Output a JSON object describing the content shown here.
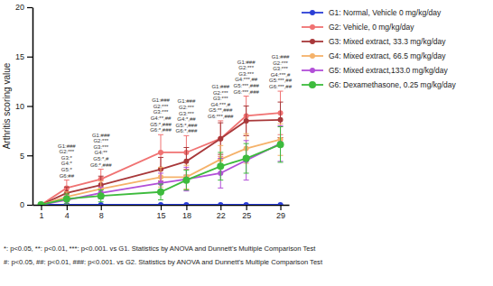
{
  "chart_data": {
    "type": "line",
    "y_label": "Arthritis scoring value",
    "x": [
      1,
      4,
      8,
      15,
      18,
      22,
      25,
      29
    ],
    "xlim": [
      0,
      30
    ],
    "xticks": [
      1,
      4,
      8,
      15,
      18,
      22,
      25,
      29
    ],
    "ylim": [
      0,
      20
    ],
    "yticks": [
      0,
      5,
      10,
      15,
      20
    ],
    "grid": false,
    "legend": "right",
    "marker": "circle",
    "series": [
      {
        "name": "G1: Normal, Vehicle 0 mg/kg/day",
        "color": "#2b3fd6",
        "values": [
          0,
          0,
          0,
          0,
          0,
          0,
          0,
          0
        ],
        "errors": [
          0,
          0,
          0,
          0,
          0,
          0,
          0,
          0
        ]
      },
      {
        "name": "G2: Vehicle, 0 mg/kg/day",
        "color": "#f07272",
        "values": [
          0,
          1.7,
          2.6,
          5.3,
          5.3,
          6.7,
          9.0,
          9.3
        ],
        "errors": [
          0,
          0.8,
          1.0,
          1.8,
          1.7,
          1.8,
          2.0,
          2.2
        ]
      },
      {
        "name": "G3: Mixed extract, 33.3 mg/kg/day",
        "color": "#a8383a",
        "values": [
          0,
          1.2,
          2.0,
          3.6,
          4.4,
          6.7,
          8.5,
          8.6
        ],
        "errors": [
          0,
          0.6,
          0.9,
          1.2,
          1.4,
          1.6,
          1.5,
          1.8
        ]
      },
      {
        "name": "G4: Mixed extract, 66.5 mg/kg/day",
        "color": "#f5b26a",
        "values": [
          0,
          0.8,
          1.6,
          2.8,
          2.8,
          4.6,
          5.7,
          6.6
        ],
        "errors": [
          0,
          0.5,
          0.8,
          1.0,
          1.2,
          1.4,
          1.5,
          1.6
        ]
      },
      {
        "name": "G5: Mixed extract,133.0 mg/kg/day",
        "color": "#b24fd8",
        "values": [
          0,
          0.5,
          1.2,
          2.2,
          2.6,
          3.2,
          4.5,
          6.2
        ],
        "errors": [
          0,
          0.4,
          0.6,
          1.0,
          1.2,
          1.5,
          2.0,
          1.8
        ]
      },
      {
        "name": "G6: Dexamethasone, 0.25 mg/kg/day",
        "color": "#3dbb3d",
        "values": [
          0,
          0.6,
          0.9,
          1.3,
          2.5,
          3.9,
          4.7,
          6.1
        ],
        "errors": [
          0,
          0.5,
          0.6,
          0.8,
          1.0,
          1.4,
          1.5,
          1.8
        ]
      }
    ],
    "annotations": [
      {
        "x": 4,
        "lines": [
          "G1:###",
          "G2:***",
          "G3:*",
          "G4:*",
          "G5:*",
          "G6:##"
        ]
      },
      {
        "x": 8,
        "lines": [
          "G1:###",
          "G2:***",
          "G3:***",
          "G4:**",
          "G5:*,#",
          "G6:*,###"
        ]
      },
      {
        "x": 15,
        "lines": [
          "G1:###",
          "G2:***",
          "G3:***",
          "G4:**,##",
          "G5:*,###",
          "G6:*,###"
        ]
      },
      {
        "x": 18,
        "lines": [
          "G1:###",
          "G2:***",
          "G3:***",
          "G4:*,##",
          "G5:*,###",
          "G6:*,###"
        ]
      },
      {
        "x": 22,
        "lines": [
          "G1:###",
          "G2:***",
          "G3:***",
          "G4:***,#",
          "G5:**,###",
          "G6:***,###"
        ]
      },
      {
        "x": 25,
        "lines": [
          "G1:###",
          "G2:***",
          "G3:***",
          "G4:***,##",
          "G5:***,###",
          "G6:***,###"
        ]
      },
      {
        "x": 29,
        "lines": [
          "G1:###",
          "G2:***",
          "G3:***",
          "G4:***,#",
          "G5:***,##",
          "G6:***,##"
        ]
      }
    ],
    "footnotes": [
      "*: p<0.05, **: p<0.01, ***: p<0.001. vs G1. Statistics by ANOVA and Dunnett's Multiple Comparison Test",
      "#: p<0.05, ##: p<0.01, ###: p<0.001. vs G2. Statistics by ANOVA and Dunnett's Multiple Comparison Test"
    ]
  }
}
